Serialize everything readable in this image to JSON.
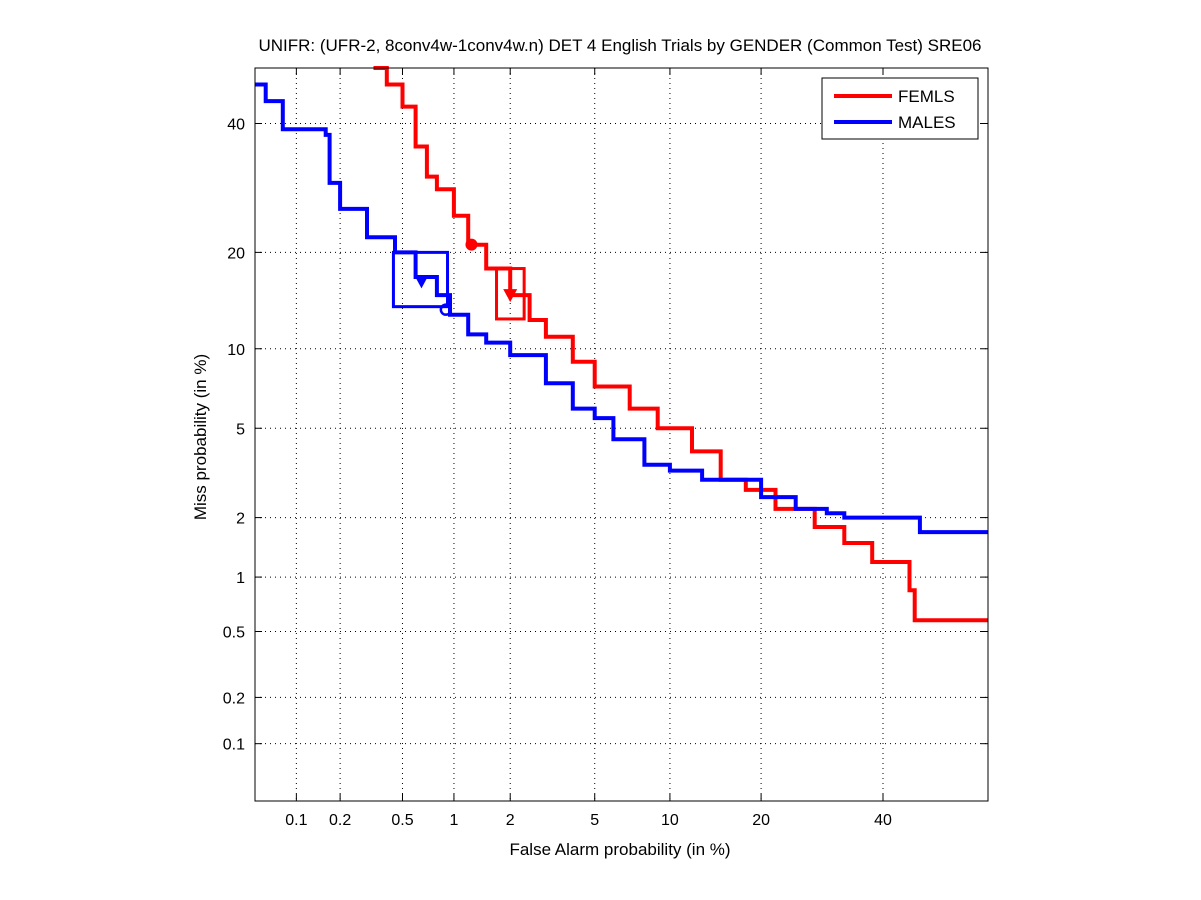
{
  "chart_data": {
    "type": "line",
    "title": "UNIFR: (UFR-2, 8conv4w-1conv4w.n) DET 4 English Trials by GENDER (Common Test) SRE06",
    "xlabel": "False Alarm probability (in %)",
    "ylabel": "Miss probability (in %)",
    "x_scale": "probit",
    "y_scale": "probit",
    "xlim": [
      0.05,
      60
    ],
    "ylim": [
      0.04,
      50
    ],
    "x_ticks": [
      0.1,
      0.2,
      0.5,
      1,
      2,
      5,
      10,
      20,
      40
    ],
    "x_tick_labels": [
      "0.1",
      "0.2",
      "0.5",
      "1",
      "2",
      "5",
      "10",
      "20",
      "40"
    ],
    "y_ticks": [
      0.1,
      0.2,
      0.5,
      1,
      2,
      5,
      10,
      20,
      40
    ],
    "y_tick_labels": [
      "0.1",
      "0.2",
      "0.5",
      "1",
      "2",
      "5",
      "10",
      "20",
      "40"
    ],
    "grid": true,
    "legend_position": "top-right",
    "series": [
      {
        "name": "FEMLS",
        "color": "#ff0000",
        "points": [
          [
            0.33,
            50
          ],
          [
            0.4,
            47
          ],
          [
            0.5,
            43
          ],
          [
            0.6,
            36
          ],
          [
            0.7,
            31
          ],
          [
            0.8,
            29
          ],
          [
            1.0,
            25
          ],
          [
            1.2,
            21
          ],
          [
            1.5,
            18
          ],
          [
            2.0,
            15
          ],
          [
            2.5,
            12.5
          ],
          [
            3.0,
            11
          ],
          [
            4.0,
            9
          ],
          [
            5.0,
            7.3
          ],
          [
            7.0,
            6
          ],
          [
            9.0,
            5
          ],
          [
            12.0,
            4
          ],
          [
            15.0,
            3
          ],
          [
            18.0,
            2.7
          ],
          [
            22.0,
            2.2
          ],
          [
            28.0,
            1.8
          ],
          [
            33.0,
            1.5
          ],
          [
            38.0,
            1.2
          ],
          [
            43.0,
            1.2
          ],
          [
            45.0,
            0.85
          ],
          [
            46.0,
            0.58
          ],
          [
            60.0,
            0.58
          ]
        ],
        "min_dcf_point": [
          1.25,
          21
        ],
        "act_dcf_point": [
          2.0,
          15
        ],
        "confidence_box": {
          "x": [
            1.7,
            2.35
          ],
          "y": [
            12.6,
            18
          ]
        }
      },
      {
        "name": "MALES",
        "color": "#0000ff",
        "points": [
          [
            0.05,
            47
          ],
          [
            0.06,
            47
          ],
          [
            0.06,
            44
          ],
          [
            0.08,
            44
          ],
          [
            0.08,
            39
          ],
          [
            0.12,
            39
          ],
          [
            0.16,
            38
          ],
          [
            0.17,
            30
          ],
          [
            0.2,
            26
          ],
          [
            0.3,
            22
          ],
          [
            0.45,
            20
          ],
          [
            0.6,
            17
          ],
          [
            0.8,
            15
          ],
          [
            0.95,
            13
          ],
          [
            1.2,
            11.2
          ],
          [
            1.5,
            10.5
          ],
          [
            2.0,
            9.5
          ],
          [
            3.0,
            7.5
          ],
          [
            4.0,
            6
          ],
          [
            5.0,
            5.5
          ],
          [
            6.0,
            4.5
          ],
          [
            8.0,
            3.5
          ],
          [
            10.0,
            3.3
          ],
          [
            13.0,
            3.0
          ],
          [
            16.0,
            3.0
          ],
          [
            20.0,
            2.5
          ],
          [
            25.0,
            2.2
          ],
          [
            30.0,
            2.1
          ],
          [
            33.0,
            2.0
          ],
          [
            44.0,
            2.0
          ],
          [
            47.0,
            1.7
          ],
          [
            60.0,
            1.7
          ]
        ],
        "min_dcf_point": [
          0.9,
          13.5
        ],
        "act_dcf_point": [
          0.65,
          16.5
        ],
        "confidence_box": {
          "x": [
            0.44,
            0.92
          ],
          "y": [
            13.8,
            20
          ]
        }
      }
    ]
  }
}
